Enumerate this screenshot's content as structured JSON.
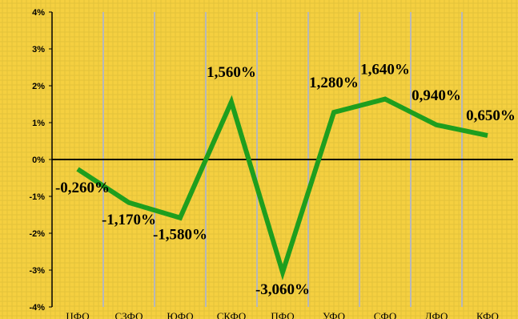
{
  "chart_data": {
    "type": "line",
    "categories": [
      "ЦФО",
      "СЗФО",
      "ЮФО",
      "СКФО",
      "ПФО",
      "УФО",
      "СФО",
      "ДФО",
      "КФО"
    ],
    "series": [
      {
        "values": [
          -0.26,
          -1.17,
          -1.58,
          1.56,
          -3.06,
          1.28,
          1.64,
          0.94,
          0.65
        ]
      }
    ],
    "data_labels": [
      "-0,260%",
      "-1,170%",
      "-1,580%",
      "1,560%",
      "-3,060%",
      "1,280%",
      "1,640%",
      "0,940%",
      "0,650%"
    ],
    "y_ticks": [
      {
        "value": 4,
        "label": "4%"
      },
      {
        "value": 3,
        "label": "3%"
      },
      {
        "value": 2,
        "label": "2%"
      },
      {
        "value": 1,
        "label": "1%"
      },
      {
        "value": 0,
        "label": "0%"
      },
      {
        "value": -1,
        "label": "-1%"
      },
      {
        "value": -2,
        "label": "-2%"
      },
      {
        "value": -3,
        "label": "-3%"
      },
      {
        "value": -4,
        "label": "-4%"
      }
    ],
    "ylim": [
      -4,
      4
    ],
    "grid": true,
    "colors": {
      "background": "#f5d040",
      "grid": "#b8b8b8",
      "line": "#1e9e1e",
      "axis": "#000000"
    }
  }
}
